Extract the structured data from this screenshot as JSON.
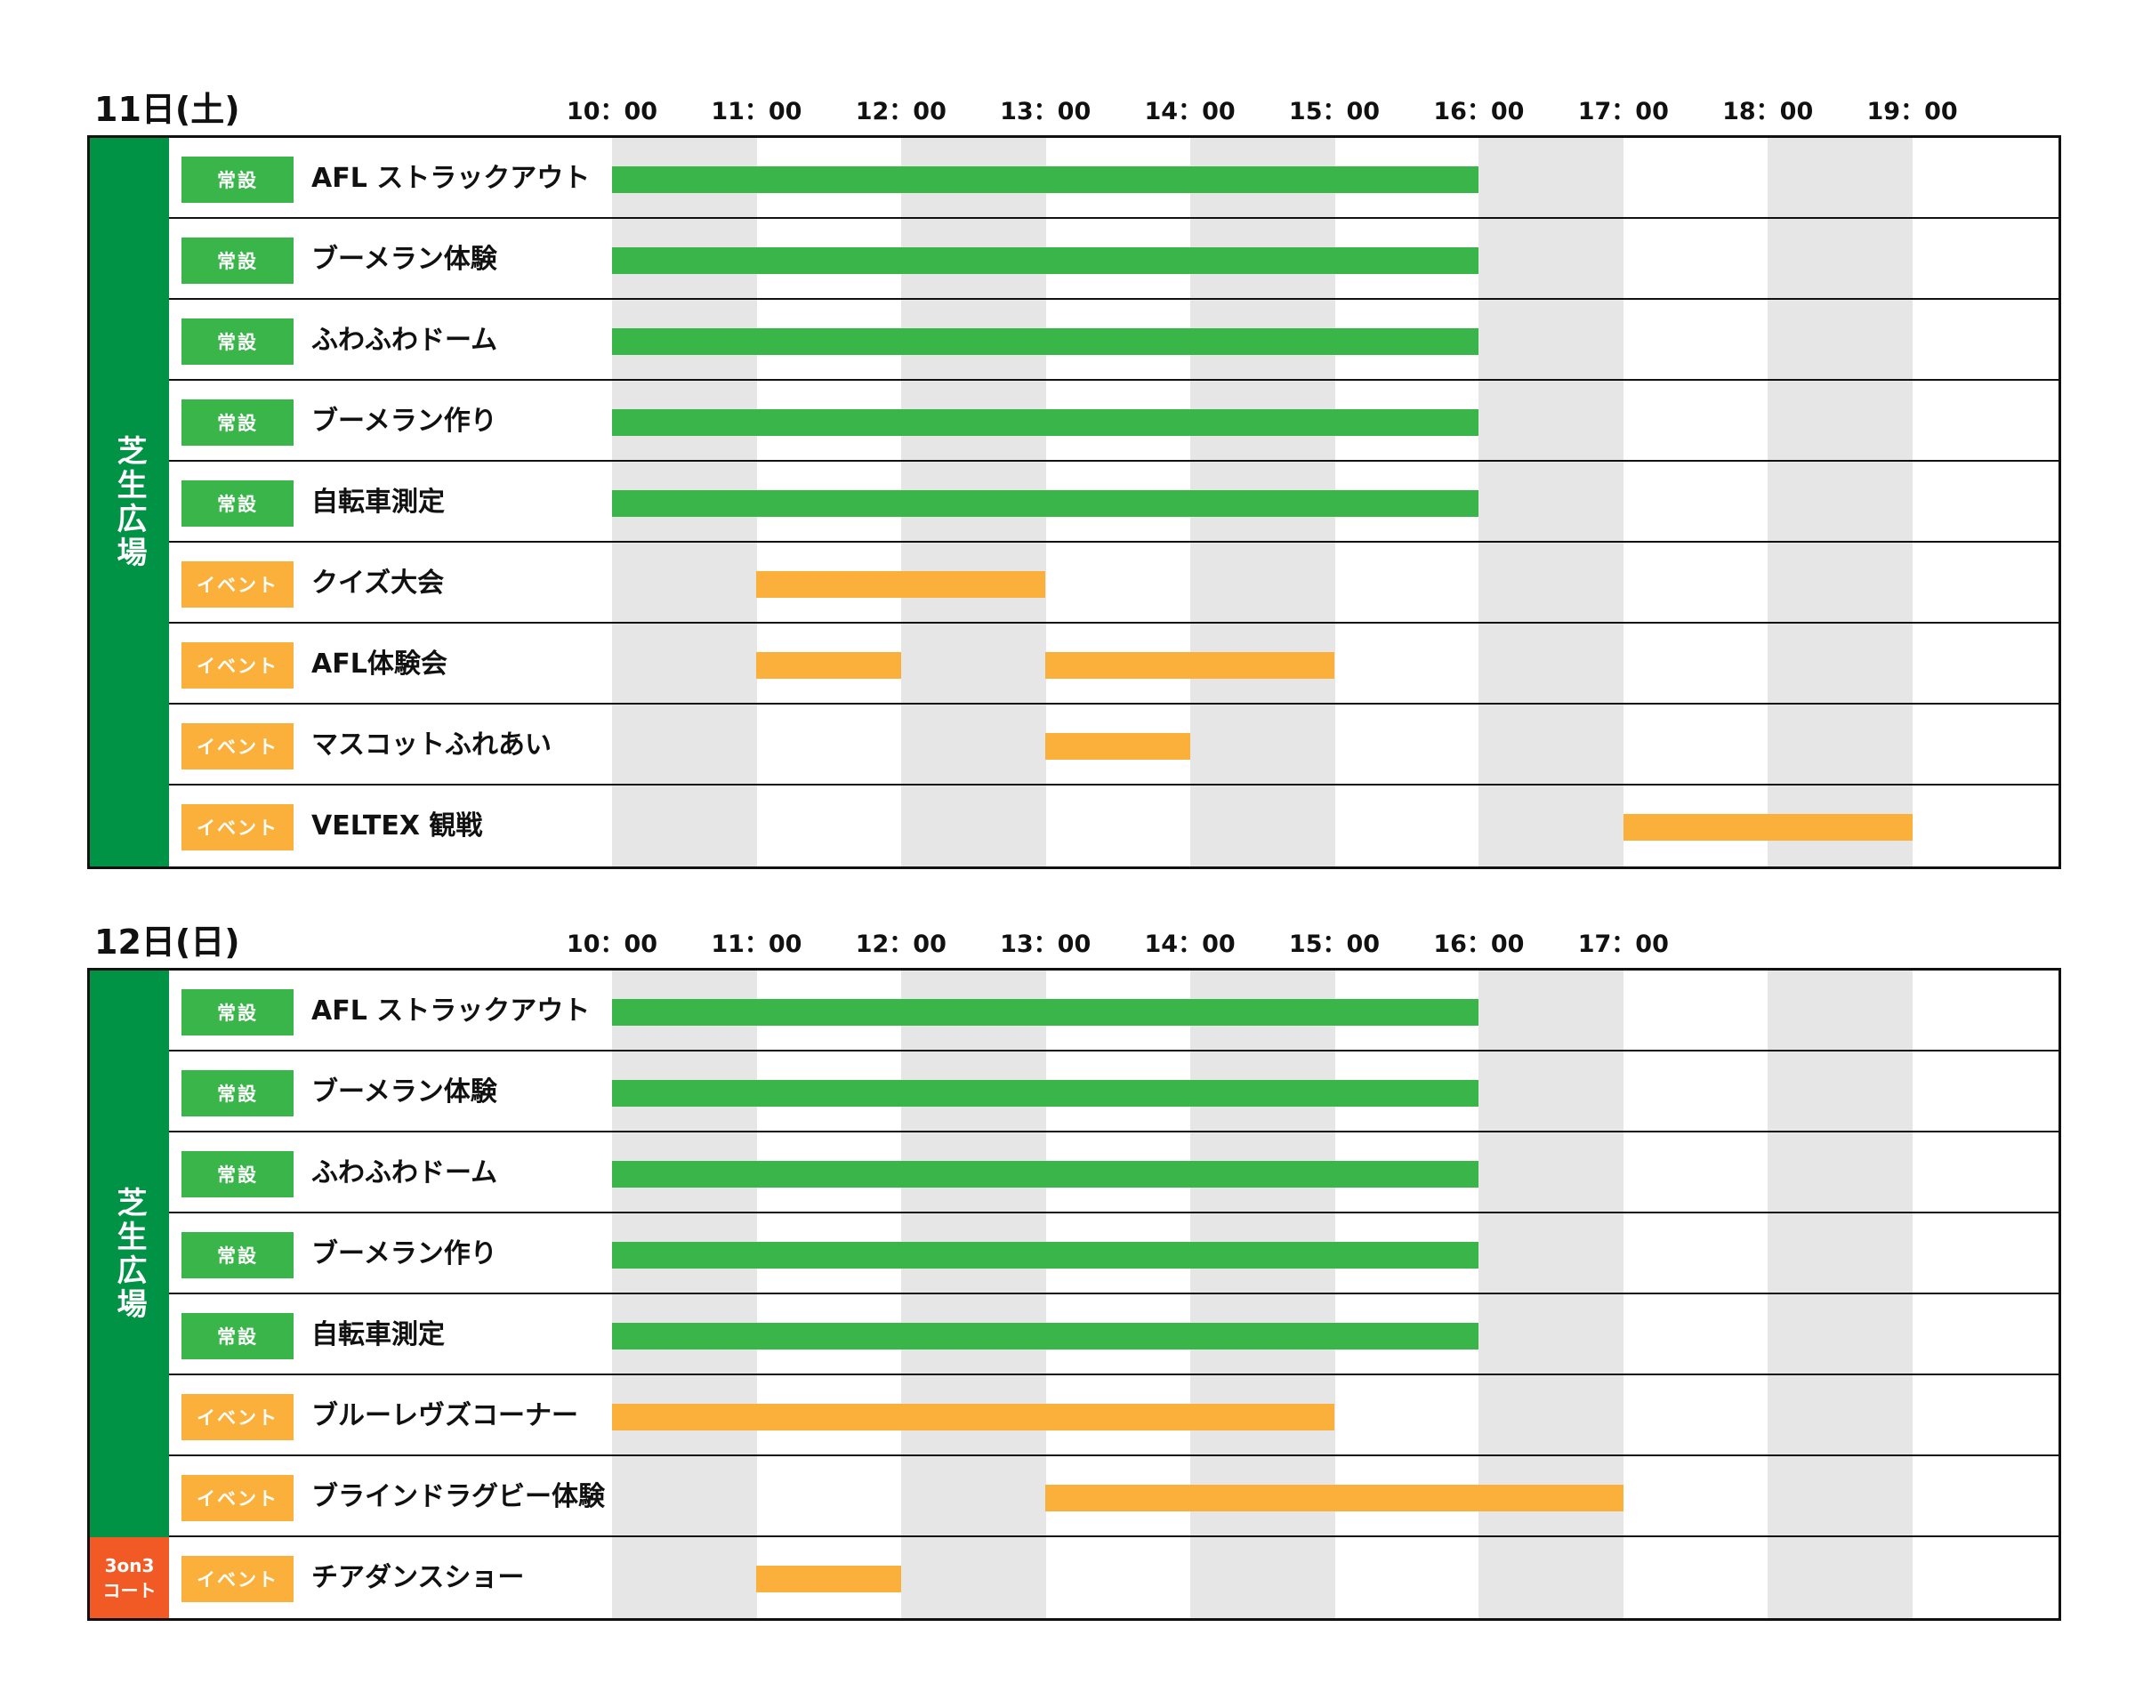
{
  "colors": {
    "venue_green": "#009245",
    "venue_orange": "#f15a24",
    "permanent": "#39b54a",
    "event": "#fbb03b",
    "shade": "#e6e6e6"
  },
  "badges": {
    "permanent": "常設",
    "event": "イベント"
  },
  "chart_data": [
    {
      "type": "gantt",
      "title": "11日(土)",
      "hours": [
        "10：00",
        "11：00",
        "12：00",
        "13：00",
        "14：00",
        "15：00",
        "16：00",
        "17：00",
        "18：00",
        "19：00"
      ],
      "venues": [
        {
          "label": "芝生広場",
          "color": "green",
          "rows": 9
        }
      ],
      "rows": [
        {
          "category": "permanent",
          "label": "AFL ストラックアウト",
          "bars": [
            [
              10,
              16
            ]
          ]
        },
        {
          "category": "permanent",
          "label": "ブーメラン体験",
          "bars": [
            [
              10,
              16
            ]
          ]
        },
        {
          "category": "permanent",
          "label": "ふわふわドーム",
          "bars": [
            [
              10,
              16
            ]
          ]
        },
        {
          "category": "permanent",
          "label": "ブーメラン作り",
          "bars": [
            [
              10,
              16
            ]
          ]
        },
        {
          "category": "permanent",
          "label": "自転車測定",
          "bars": [
            [
              10,
              16
            ]
          ]
        },
        {
          "category": "event",
          "label": "クイズ大会",
          "bars": [
            [
              11,
              13
            ]
          ]
        },
        {
          "category": "event",
          "label": "AFL体験会",
          "bars": [
            [
              11,
              12
            ],
            [
              13,
              15
            ]
          ]
        },
        {
          "category": "event",
          "label": "マスコットふれあい",
          "bars": [
            [
              13,
              14
            ]
          ]
        },
        {
          "category": "event",
          "label": "VELTEX 観戦",
          "bars": [
            [
              17,
              19
            ]
          ]
        }
      ]
    },
    {
      "type": "gantt",
      "title": "12日(日)",
      "hours": [
        "10：00",
        "11：00",
        "12：00",
        "13：00",
        "14：00",
        "15：00",
        "16：00",
        "17：00"
      ],
      "venues": [
        {
          "label": "芝生広場",
          "color": "green",
          "rows": 7
        },
        {
          "label": "3on3\nコート",
          "color": "orange",
          "rows": 1
        }
      ],
      "rows": [
        {
          "category": "permanent",
          "label": "AFL ストラックアウト",
          "bars": [
            [
              10,
              16
            ]
          ]
        },
        {
          "category": "permanent",
          "label": "ブーメラン体験",
          "bars": [
            [
              10,
              16
            ]
          ]
        },
        {
          "category": "permanent",
          "label": "ふわふわドーム",
          "bars": [
            [
              10,
              16
            ]
          ]
        },
        {
          "category": "permanent",
          "label": "ブーメラン作り",
          "bars": [
            [
              10,
              16
            ]
          ]
        },
        {
          "category": "permanent",
          "label": "自転車測定",
          "bars": [
            [
              10,
              16
            ]
          ]
        },
        {
          "category": "event",
          "label": "ブルーレヴズコーナー",
          "bars": [
            [
              10,
              15
            ]
          ]
        },
        {
          "category": "event",
          "label": "ブラインドラグビー体験",
          "bars": [
            [
              13,
              17
            ]
          ]
        },
        {
          "category": "event",
          "label": "チアダンスショー",
          "bars": [
            [
              11,
              12
            ]
          ]
        }
      ]
    }
  ]
}
